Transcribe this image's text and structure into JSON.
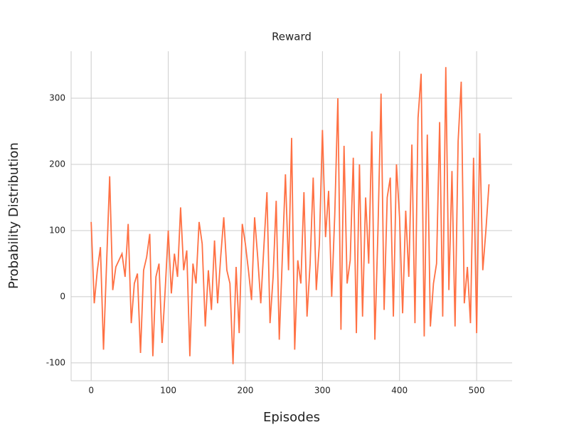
{
  "chart_data": {
    "type": "line",
    "title": "Reward",
    "xlabel": "Episodes",
    "ylabel": "Probability Distribution",
    "x": [
      0,
      4,
      8,
      12,
      16,
      20,
      24,
      28,
      32,
      36,
      40,
      44,
      48,
      52,
      56,
      60,
      64,
      68,
      72,
      76,
      80,
      84,
      88,
      92,
      96,
      100,
      104,
      108,
      112,
      116,
      120,
      124,
      128,
      132,
      136,
      140,
      144,
      148,
      152,
      156,
      160,
      164,
      168,
      172,
      176,
      180,
      184,
      188,
      192,
      196,
      200,
      204,
      208,
      212,
      216,
      220,
      224,
      228,
      232,
      236,
      240,
      244,
      248,
      252,
      256,
      260,
      264,
      268,
      272,
      276,
      280,
      284,
      288,
      292,
      296,
      300,
      304,
      308,
      312,
      316,
      320,
      324,
      328,
      332,
      336,
      340,
      344,
      348,
      352,
      356,
      360,
      364,
      368,
      372,
      376,
      380,
      384,
      388,
      392,
      396,
      400,
      404,
      408,
      412,
      416,
      420,
      424,
      428,
      432,
      436,
      440,
      444,
      448,
      452,
      456,
      460,
      464,
      468,
      472,
      476,
      480,
      484,
      488,
      492,
      496,
      500,
      504,
      508,
      512,
      516
    ],
    "series": [
      {
        "name": "Reward",
        "color": "#ff7043",
        "values": [
          113,
          -10,
          40,
          75,
          -80,
          50,
          182,
          10,
          45,
          55,
          65,
          30,
          110,
          -40,
          20,
          35,
          -85,
          40,
          60,
          95,
          -90,
          30,
          50,
          -70,
          10,
          100,
          5,
          65,
          30,
          135,
          40,
          70,
          -90,
          50,
          20,
          113,
          80,
          -45,
          40,
          -20,
          85,
          -10,
          60,
          120,
          40,
          20,
          -102,
          45,
          -55,
          110,
          80,
          40,
          -5,
          120,
          60,
          -10,
          75,
          158,
          -40,
          30,
          145,
          -65,
          60,
          185,
          40,
          240,
          -80,
          55,
          20,
          158,
          -30,
          50,
          180,
          10,
          80,
          252,
          90,
          160,
          0,
          125,
          300,
          -50,
          228,
          20,
          55,
          210,
          -55,
          200,
          -30,
          150,
          50,
          250,
          -65,
          100,
          307,
          -20,
          150,
          180,
          -30,
          200,
          120,
          -25,
          130,
          30,
          230,
          -40,
          270,
          337,
          -60,
          245,
          -45,
          20,
          50,
          264,
          -30,
          347,
          10,
          190,
          -45,
          235,
          325,
          -10,
          45,
          -40,
          210,
          -55,
          247,
          40,
          100,
          170
        ]
      }
    ],
    "xlim": [
      -26,
      546
    ],
    "ylim": [
      -127,
      371
    ],
    "xticks": [
      0,
      100,
      200,
      300,
      400,
      500
    ],
    "yticks": [
      -100,
      0,
      100,
      200,
      300
    ],
    "grid": true
  }
}
